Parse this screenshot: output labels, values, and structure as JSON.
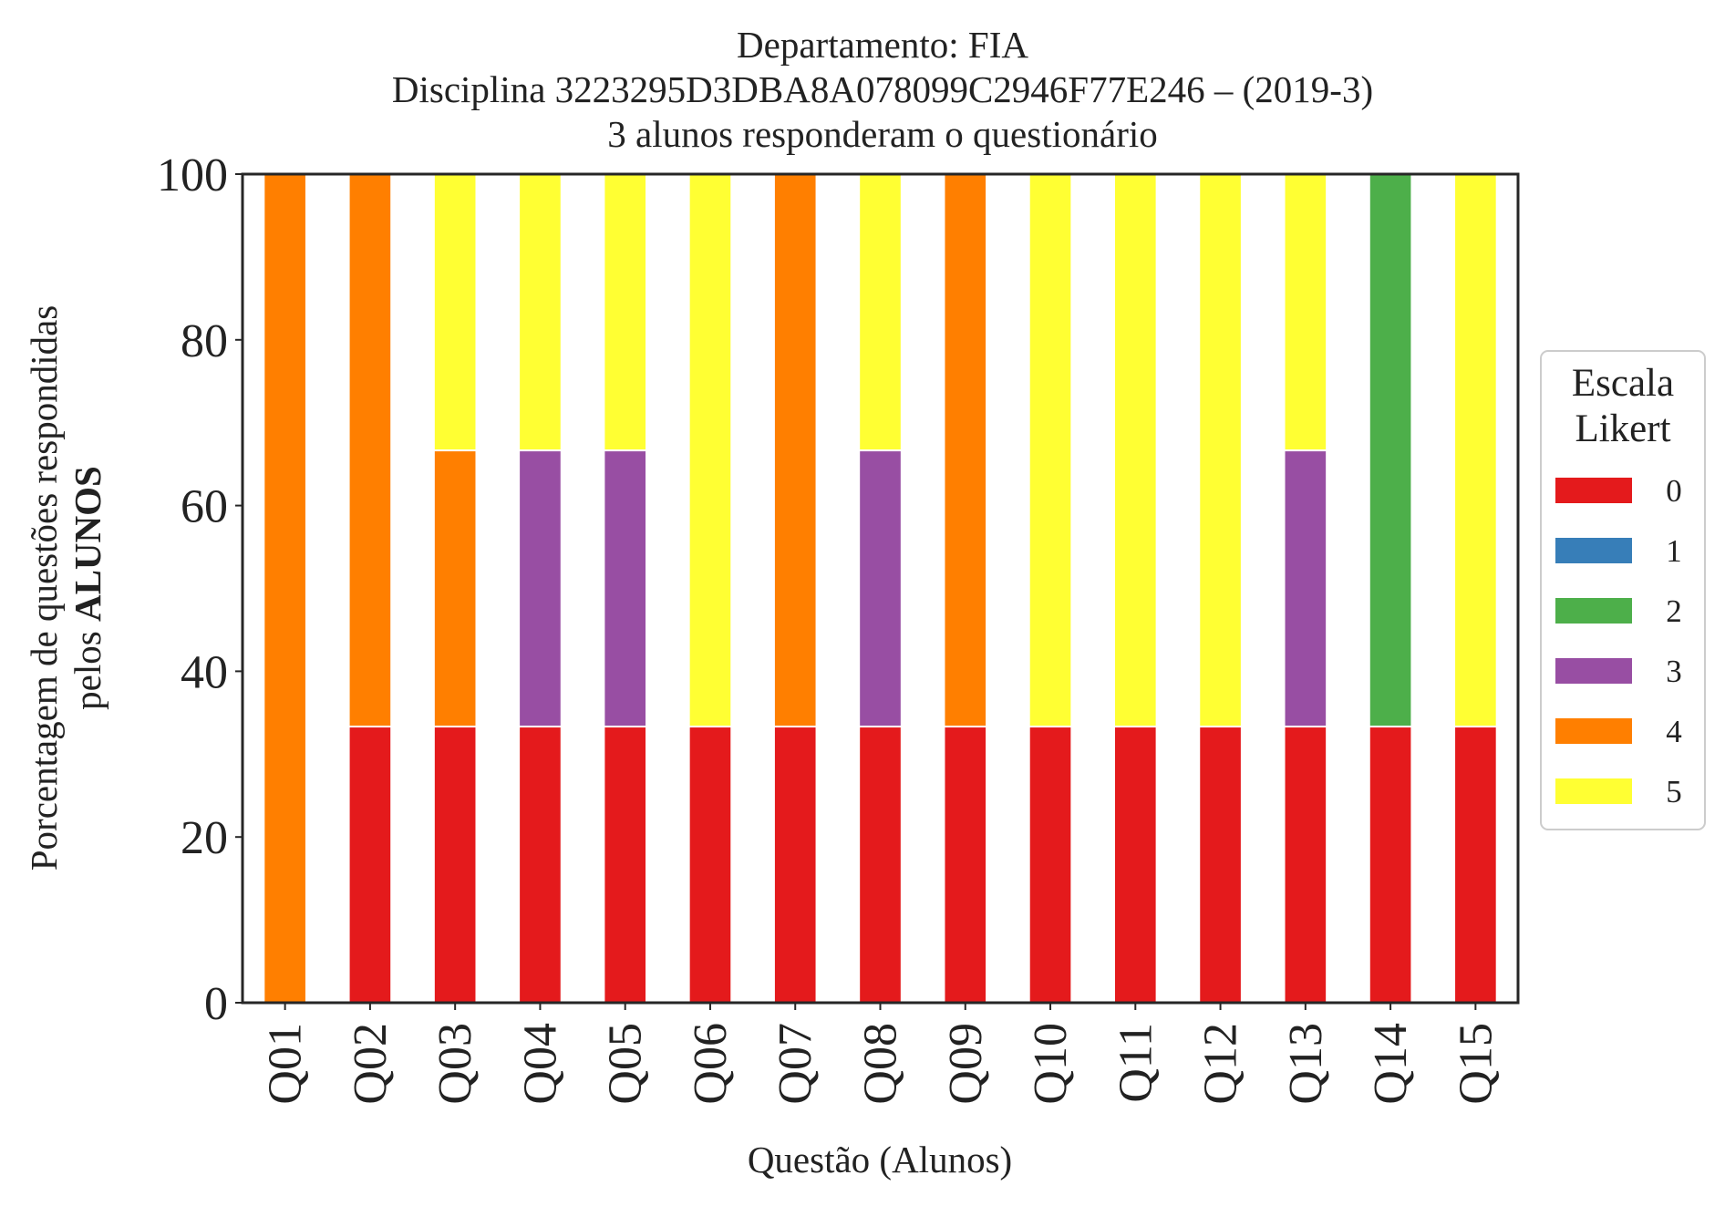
{
  "chart_data": {
    "type": "bar",
    "stacked": true,
    "title_lines": [
      "Departamento: FIA",
      "Disciplina 3223295D3DBA8A078099C2946F77E246 – (2019-3)",
      "3 alunos responderam o questionário"
    ],
    "xlabel": "Questão (Alunos)",
    "ylabel_line1": "Porcentagem de questões respondidas",
    "ylabel_line2_prefix": "pelos ",
    "ylabel_line2_bold": "ALUNOS",
    "ylim": [
      0,
      100
    ],
    "yticks": [
      "0",
      "20",
      "40",
      "60",
      "80",
      "100"
    ],
    "grid": false,
    "legend_position": "right",
    "legend_title_lines": [
      "Escala",
      "Likert"
    ],
    "categories": [
      "Q01",
      "Q02",
      "Q03",
      "Q04",
      "Q05",
      "Q06",
      "Q07",
      "Q08",
      "Q09",
      "Q10",
      "Q11",
      "Q12",
      "Q13",
      "Q14",
      "Q15"
    ],
    "series": [
      {
        "name": "0",
        "color": "#e41a1c",
        "values": [
          0,
          33.33,
          33.33,
          33.33,
          33.33,
          33.33,
          33.33,
          33.33,
          33.33,
          33.33,
          33.33,
          33.33,
          33.33,
          33.33,
          33.33
        ]
      },
      {
        "name": "1",
        "color": "#377eb8",
        "values": [
          0,
          0,
          0,
          0,
          0,
          0,
          0,
          0,
          0,
          0,
          0,
          0,
          0,
          0,
          0
        ]
      },
      {
        "name": "2",
        "color": "#4daf4a",
        "values": [
          0,
          0,
          0,
          0,
          0,
          0,
          0,
          0,
          0,
          0,
          0,
          0,
          0,
          66.67,
          0
        ]
      },
      {
        "name": "3",
        "color": "#984ea3",
        "values": [
          0,
          0,
          0,
          33.33,
          33.33,
          0,
          0,
          33.33,
          0,
          0,
          0,
          0,
          33.33,
          0,
          0
        ]
      },
      {
        "name": "4",
        "color": "#ff7f00",
        "values": [
          100,
          66.67,
          33.33,
          0,
          0,
          0,
          66.67,
          0,
          66.67,
          0,
          0,
          0,
          0,
          0,
          0
        ]
      },
      {
        "name": "5",
        "color": "#ffff33",
        "values": [
          0,
          0,
          33.33,
          33.33,
          33.33,
          66.67,
          0,
          33.33,
          0,
          66.67,
          66.67,
          66.67,
          33.33,
          0,
          66.67
        ]
      }
    ]
  }
}
